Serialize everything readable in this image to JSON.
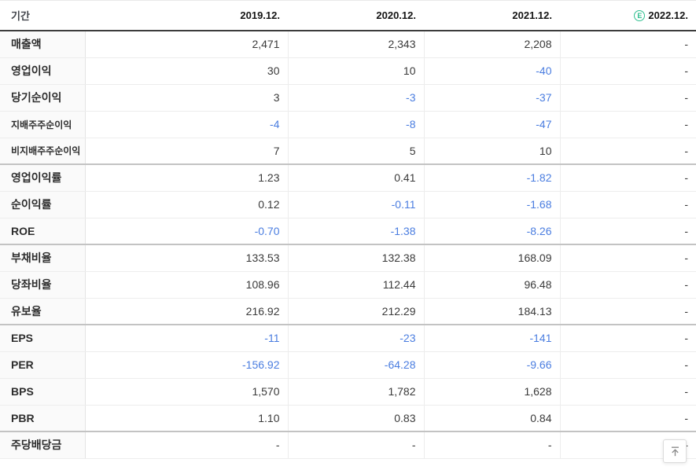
{
  "colors": {
    "negative_value": "#4a7de0",
    "estimate_badge": "#2fbf8f",
    "header_rule": "#3c3c3c"
  },
  "table": {
    "period_label": "기간",
    "estimate_icon": {
      "letter": "E"
    },
    "columns": [
      {
        "key": "2019-12",
        "label": "2019.12.",
        "estimate": false
      },
      {
        "key": "2020-12",
        "label": "2020.12.",
        "estimate": false
      },
      {
        "key": "2021-12",
        "label": "2021.12.",
        "estimate": false
      },
      {
        "key": "2022-12",
        "label": "2022.12.",
        "estimate": true
      }
    ],
    "rows": [
      {
        "key": "revenue",
        "label": "매출액",
        "small": false,
        "group_start": false,
        "values": [
          {
            "text": "2,471",
            "negative": false
          },
          {
            "text": "2,343",
            "negative": false
          },
          {
            "text": "2,208",
            "negative": false
          },
          {
            "text": "-",
            "negative": false
          }
        ]
      },
      {
        "key": "operating-profit",
        "label": "영업이익",
        "small": false,
        "group_start": false,
        "values": [
          {
            "text": "30",
            "negative": false
          },
          {
            "text": "10",
            "negative": false
          },
          {
            "text": "-40",
            "negative": true
          },
          {
            "text": "-",
            "negative": false
          }
        ]
      },
      {
        "key": "net-income",
        "label": "당기순이익",
        "small": false,
        "group_start": false,
        "values": [
          {
            "text": "3",
            "negative": false
          },
          {
            "text": "-3",
            "negative": true
          },
          {
            "text": "-37",
            "negative": true
          },
          {
            "text": "-",
            "negative": false
          }
        ]
      },
      {
        "key": "controlling-net-income",
        "label": "지배주주순이익",
        "small": true,
        "group_start": false,
        "values": [
          {
            "text": "-4",
            "negative": true
          },
          {
            "text": "-8",
            "negative": true
          },
          {
            "text": "-47",
            "negative": true
          },
          {
            "text": "-",
            "negative": false
          }
        ]
      },
      {
        "key": "non-controlling-net-income",
        "label": "비지배주주순이익",
        "small": true,
        "group_start": false,
        "values": [
          {
            "text": "7",
            "negative": false
          },
          {
            "text": "5",
            "negative": false
          },
          {
            "text": "10",
            "negative": false
          },
          {
            "text": "-",
            "negative": false
          }
        ]
      },
      {
        "key": "operating-margin",
        "label": "영업이익률",
        "small": false,
        "group_start": true,
        "values": [
          {
            "text": "1.23",
            "negative": false
          },
          {
            "text": "0.41",
            "negative": false
          },
          {
            "text": "-1.82",
            "negative": true
          },
          {
            "text": "-",
            "negative": false
          }
        ]
      },
      {
        "key": "net-margin",
        "label": "순이익률",
        "small": false,
        "group_start": false,
        "values": [
          {
            "text": "0.12",
            "negative": false
          },
          {
            "text": "-0.11",
            "negative": true
          },
          {
            "text": "-1.68",
            "negative": true
          },
          {
            "text": "-",
            "negative": false
          }
        ]
      },
      {
        "key": "roe",
        "label": "ROE",
        "small": false,
        "group_start": false,
        "values": [
          {
            "text": "-0.70",
            "negative": true
          },
          {
            "text": "-1.38",
            "negative": true
          },
          {
            "text": "-8.26",
            "negative": true
          },
          {
            "text": "-",
            "negative": false
          }
        ]
      },
      {
        "key": "debt-ratio",
        "label": "부채비율",
        "small": false,
        "group_start": true,
        "values": [
          {
            "text": "133.53",
            "negative": false
          },
          {
            "text": "132.38",
            "negative": false
          },
          {
            "text": "168.09",
            "negative": false
          },
          {
            "text": "-",
            "negative": false
          }
        ]
      },
      {
        "key": "quick-ratio",
        "label": "당좌비율",
        "small": false,
        "group_start": false,
        "values": [
          {
            "text": "108.96",
            "negative": false
          },
          {
            "text": "112.44",
            "negative": false
          },
          {
            "text": "96.48",
            "negative": false
          },
          {
            "text": "-",
            "negative": false
          }
        ]
      },
      {
        "key": "reserve-ratio",
        "label": "유보율",
        "small": false,
        "group_start": false,
        "values": [
          {
            "text": "216.92",
            "negative": false
          },
          {
            "text": "212.29",
            "negative": false
          },
          {
            "text": "184.13",
            "negative": false
          },
          {
            "text": "-",
            "negative": false
          }
        ]
      },
      {
        "key": "eps",
        "label": "EPS",
        "small": false,
        "group_start": true,
        "values": [
          {
            "text": "-11",
            "negative": true
          },
          {
            "text": "-23",
            "negative": true
          },
          {
            "text": "-141",
            "negative": true
          },
          {
            "text": "-",
            "negative": false
          }
        ]
      },
      {
        "key": "per",
        "label": "PER",
        "small": false,
        "group_start": false,
        "values": [
          {
            "text": "-156.92",
            "negative": true
          },
          {
            "text": "-64.28",
            "negative": true
          },
          {
            "text": "-9.66",
            "negative": true
          },
          {
            "text": "-",
            "negative": false
          }
        ]
      },
      {
        "key": "bps",
        "label": "BPS",
        "small": false,
        "group_start": false,
        "values": [
          {
            "text": "1,570",
            "negative": false
          },
          {
            "text": "1,782",
            "negative": false
          },
          {
            "text": "1,628",
            "negative": false
          },
          {
            "text": "-",
            "negative": false
          }
        ]
      },
      {
        "key": "pbr",
        "label": "PBR",
        "small": false,
        "group_start": false,
        "values": [
          {
            "text": "1.10",
            "negative": false
          },
          {
            "text": "0.83",
            "negative": false
          },
          {
            "text": "0.84",
            "negative": false
          },
          {
            "text": "-",
            "negative": false
          }
        ]
      },
      {
        "key": "dividend-per-share",
        "label": "주당배당금",
        "small": false,
        "group_start": true,
        "values": [
          {
            "text": "-",
            "negative": false
          },
          {
            "text": "-",
            "negative": false
          },
          {
            "text": "-",
            "negative": false
          },
          {
            "text": "-",
            "negative": false
          }
        ]
      }
    ]
  },
  "scroll_top": {
    "icon": "arrow-up-to-top"
  }
}
